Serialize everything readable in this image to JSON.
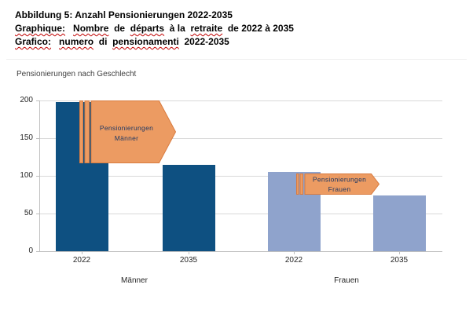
{
  "title_block": {
    "line1": {
      "parts": [
        {
          "text": "Abbildung 5: Anzahl Pensionierungen 2022-2035",
          "misspelled": false
        }
      ]
    },
    "line2": {
      "parts": [
        {
          "text": "Graphique:",
          "misspelled": true
        },
        {
          "text": " ",
          "misspelled": false
        },
        {
          "text": "Nombre",
          "misspelled": true
        },
        {
          "text": " de ",
          "misspelled": false
        },
        {
          "text": "départs",
          "misspelled": true
        },
        {
          "text": " à la ",
          "misspelled": false
        },
        {
          "text": "retraite",
          "misspelled": true
        },
        {
          "text": " de 2022 à 2035",
          "misspelled": false
        }
      ]
    },
    "line3": {
      "parts": [
        {
          "text": "Grafico:",
          "misspelled": true
        },
        {
          "text": " ",
          "misspelled": false
        },
        {
          "text": "numero",
          "misspelled": true
        },
        {
          "text": " di ",
          "misspelled": false
        },
        {
          "text": "pensionamenti",
          "misspelled": true
        },
        {
          "text": " 2022-2035",
          "misspelled": false
        }
      ]
    }
  },
  "chart_data": {
    "type": "bar",
    "title": "Pensionierungen nach Geschlecht",
    "xlabel": "",
    "ylabel": "",
    "ylim": [
      0,
      200
    ],
    "yticks": [
      0,
      50,
      100,
      150,
      200
    ],
    "grid": "horizontal",
    "legend": "none",
    "groups": [
      {
        "label": "Männer",
        "color": "#0e5081",
        "bars": [
          {
            "category": "2022",
            "value": 198
          },
          {
            "category": "2035",
            "value": 115
          }
        ]
      },
      {
        "label": "Frauen",
        "color": "#8fa3cc",
        "bars": [
          {
            "category": "2022",
            "value": 105
          },
          {
            "category": "2035",
            "value": 74
          }
        ]
      }
    ],
    "annotations": [
      {
        "shape": "striped-right-arrow",
        "lines": [
          "Pensionierungen",
          "Männer"
        ],
        "fill": "#ec9b62",
        "border": "#d97b3f",
        "text_color": "#1f3864"
      },
      {
        "shape": "striped-right-arrow",
        "lines": [
          "Pensionierungen",
          "Frauen"
        ],
        "fill": "#ec9b62",
        "border": "#d97b3f",
        "text_color": "#1f3864"
      }
    ]
  },
  "colors": {
    "spellcheck_underline": "#c00000",
    "gridline": "#d9d9d9",
    "axis_line": "#bfbfbf",
    "axis_text": "#262626",
    "caption_text": "#000000"
  }
}
